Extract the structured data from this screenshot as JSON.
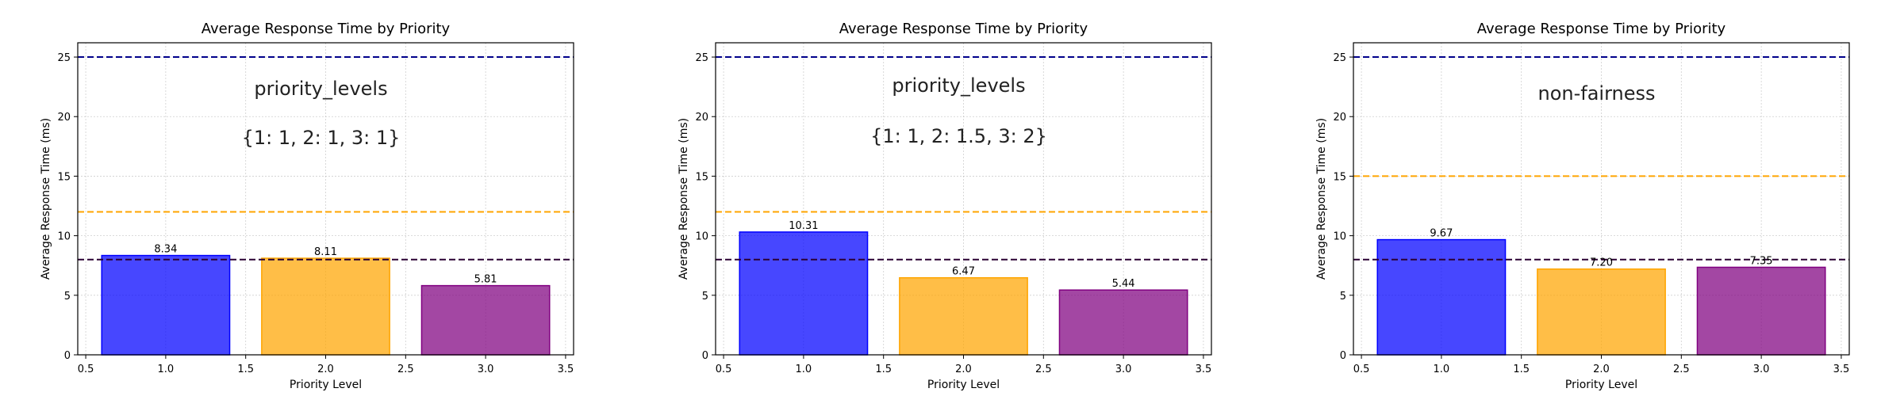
{
  "chart_data": [
    {
      "type": "bar",
      "title": "Average Response Time by Priority",
      "xlabel": "Priority Level",
      "ylabel": "Average Response Time (ms)",
      "xlim": [
        0.45,
        3.55
      ],
      "ylim": [
        0,
        26.2
      ],
      "xticks": [
        0.5,
        1.0,
        1.5,
        2.0,
        2.5,
        3.0,
        3.5
      ],
      "xtick_labels": [
        "0.5",
        "1.0",
        "1.5",
        "2.0",
        "2.5",
        "3.0",
        "3.5"
      ],
      "yticks": [
        0,
        5,
        10,
        15,
        20,
        25
      ],
      "ytick_labels": [
        "0",
        "5",
        "10",
        "15",
        "20",
        "25"
      ],
      "grid": true,
      "x": [
        1,
        2,
        3
      ],
      "bar_width": 0.8,
      "values": [
        8.34,
        8.11,
        5.81
      ],
      "value_labels": [
        "8.34",
        "8.11",
        "5.81"
      ],
      "colors": [
        "#0000ff",
        "#ffa500",
        "#800080"
      ],
      "hlines": [
        {
          "y": 25,
          "color": "#00008b"
        },
        {
          "y": 12,
          "color": "#ffa500"
        },
        {
          "y": 8,
          "color": "#2a0033"
        }
      ],
      "annotations": [
        "priority_levels",
        "{1: 1, 2: 1, 3: 1}"
      ]
    },
    {
      "type": "bar",
      "title": "Average Response Time by Priority",
      "xlabel": "Priority Level",
      "ylabel": "Average Response Time (ms)",
      "xlim": [
        0.45,
        3.55
      ],
      "ylim": [
        0,
        26.2
      ],
      "xticks": [
        0.5,
        1.0,
        1.5,
        2.0,
        2.5,
        3.0,
        3.5
      ],
      "xtick_labels": [
        "0.5",
        "1.0",
        "1.5",
        "2.0",
        "2.5",
        "3.0",
        "3.5"
      ],
      "yticks": [
        0,
        5,
        10,
        15,
        20,
        25
      ],
      "ytick_labels": [
        "0",
        "5",
        "10",
        "15",
        "20",
        "25"
      ],
      "grid": true,
      "x": [
        1,
        2,
        3
      ],
      "bar_width": 0.8,
      "values": [
        10.31,
        6.47,
        5.44
      ],
      "value_labels": [
        "10.31",
        "6.47",
        "5.44"
      ],
      "colors": [
        "#0000ff",
        "#ffa500",
        "#800080"
      ],
      "hlines": [
        {
          "y": 25,
          "color": "#00008b"
        },
        {
          "y": 12,
          "color": "#ffa500"
        },
        {
          "y": 8,
          "color": "#2a0033"
        }
      ],
      "annotations": [
        "priority_levels",
        "{1: 1, 2: 1.5, 3: 2}"
      ]
    },
    {
      "type": "bar",
      "title": "Average Response Time by Priority",
      "xlabel": "Priority Level",
      "ylabel": "Average Response Time (ms)",
      "xlim": [
        0.45,
        3.55
      ],
      "ylim": [
        0,
        26.2
      ],
      "xticks": [
        0.5,
        1.0,
        1.5,
        2.0,
        2.5,
        3.0,
        3.5
      ],
      "xtick_labels": [
        "0.5",
        "1.0",
        "1.5",
        "2.0",
        "2.5",
        "3.0",
        "3.5"
      ],
      "yticks": [
        0,
        5,
        10,
        15,
        20,
        25
      ],
      "ytick_labels": [
        "0",
        "5",
        "10",
        "15",
        "20",
        "25"
      ],
      "grid": true,
      "x": [
        1,
        2,
        3
      ],
      "bar_width": 0.8,
      "values": [
        9.67,
        7.2,
        7.35
      ],
      "value_labels": [
        "9.67",
        "7.20",
        "7.35"
      ],
      "colors": [
        "#0000ff",
        "#ffa500",
        "#800080"
      ],
      "hlines": [
        {
          "y": 25,
          "color": "#00008b"
        },
        {
          "y": 15,
          "color": "#ffa500"
        },
        {
          "y": 8,
          "color": "#2a0033"
        }
      ],
      "annotations": [
        "non-fairness"
      ]
    }
  ]
}
